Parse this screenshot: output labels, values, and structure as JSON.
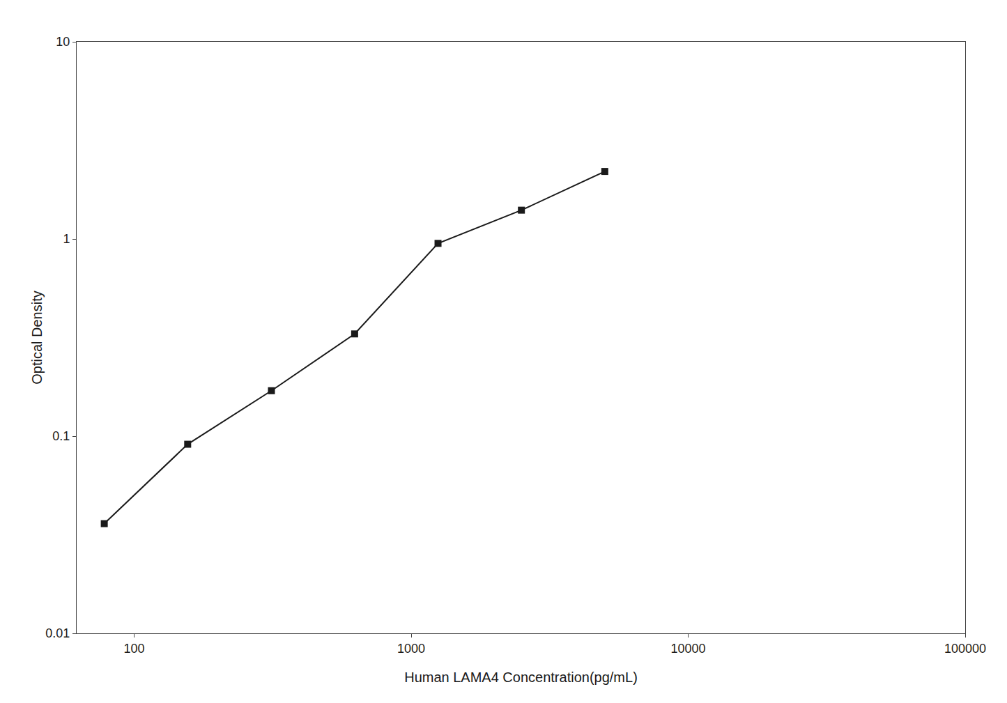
{
  "chart_data": {
    "type": "line",
    "xlabel": "Human LAMA4 Concentration(pg/mL)",
    "ylabel": "Optical Density",
    "x": [
      78,
      156,
      313,
      625,
      1250,
      2500,
      5000
    ],
    "values": [
      0.036,
      0.091,
      0.17,
      0.33,
      0.95,
      1.4,
      2.2
    ],
    "xlim": [
      62,
      100000
    ],
    "ylim": [
      0.01,
      10
    ],
    "xticks": [
      100,
      1000,
      10000,
      100000
    ],
    "yticks": [
      0.01,
      0.1,
      1,
      10
    ],
    "log": true,
    "grid": false,
    "color": "#1a1a1a",
    "marker": "square"
  }
}
